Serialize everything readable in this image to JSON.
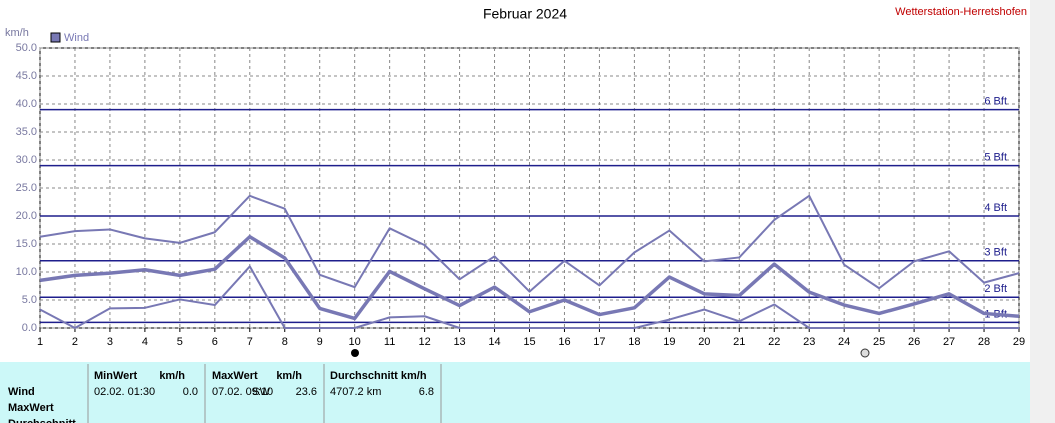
{
  "chart_data": {
    "type": "line",
    "title": "Februar 2024",
    "station": "Wetterstation-Herretshofen",
    "y_axis_label": "km/h",
    "legend": "Wind",
    "legend_color": "#7878b4",
    "grid": true,
    "x": [
      1,
      2,
      3,
      4,
      5,
      6,
      7,
      8,
      9,
      10,
      11,
      12,
      13,
      14,
      15,
      16,
      17,
      18,
      19,
      20,
      21,
      22,
      23,
      24,
      25,
      26,
      27,
      28,
      29
    ],
    "xlim": [
      1,
      29
    ],
    "xticks": [
      1,
      2,
      3,
      4,
      5,
      6,
      7,
      8,
      9,
      10,
      11,
      12,
      13,
      14,
      15,
      16,
      17,
      18,
      19,
      20,
      21,
      22,
      23,
      24,
      25,
      26,
      27,
      28,
      29
    ],
    "ylim": [
      0,
      50
    ],
    "yticks": [
      {
        "value": 0,
        "label": "0.0"
      },
      {
        "value": 5,
        "label": "5.0"
      },
      {
        "value": 10,
        "label": "10.0"
      },
      {
        "value": 15,
        "label": "15.0"
      },
      {
        "value": 20,
        "label": "20.0"
      },
      {
        "value": 25,
        "label": "25.0"
      },
      {
        "value": 30,
        "label": "30.0"
      },
      {
        "value": 35,
        "label": "35.0"
      },
      {
        "value": 40,
        "label": "40.0"
      },
      {
        "value": 45,
        "label": "45.0"
      },
      {
        "value": 50,
        "label": "50.0"
      }
    ],
    "reference_lines": [
      {
        "value": 1,
        "label": "1 Bft"
      },
      {
        "value": 5.5,
        "label": "2 Bft"
      },
      {
        "value": 12,
        "label": "3 Bft"
      },
      {
        "value": 20,
        "label": "4 Bft"
      },
      {
        "value": 29,
        "label": "5 Bft"
      },
      {
        "value": 39,
        "label": "6 Bft"
      }
    ],
    "reference_color": "#1e1e8c",
    "series": [
      {
        "color": "#7878b4",
        "width": 2,
        "values": [
          16.3,
          17.3,
          17.6,
          16,
          15.2,
          17.1,
          23.6,
          21.3,
          9.5,
          7.3,
          17.8,
          14.8,
          8.7,
          12.8,
          6.5,
          12,
          7.6,
          13.5,
          17.4,
          11.9,
          12.6,
          19.3,
          23.6,
          11.3,
          7.1,
          11.9,
          13.7,
          8.1,
          9.8
        ]
      },
      {
        "color": "#7878b4",
        "width": 3.5,
        "values": [
          8.5,
          9.4,
          9.8,
          10.4,
          9.4,
          10.5,
          16.3,
          12.5,
          3.5,
          1.7,
          10.1,
          7,
          4,
          7.3,
          2.9,
          5,
          2.4,
          3.6,
          9.1,
          6.1,
          5.8,
          11.4,
          6.4,
          4.1,
          2.6,
          4.3,
          6.1,
          2.6,
          2.1
        ]
      },
      {
        "color": "#7878b4",
        "width": 2,
        "values": [
          3.3,
          0,
          3.5,
          3.6,
          5.1,
          4.1,
          11,
          0,
          0,
          0,
          1.9,
          2.1,
          0,
          0,
          0,
          0,
          0,
          0,
          1.5,
          3.3,
          1.2,
          4.2,
          0,
          0,
          0,
          0,
          0,
          0,
          0
        ]
      }
    ]
  },
  "table": {
    "headers": [
      "MinWert",
      "km/h",
      "MaxWert",
      "km/h",
      "Durchschnitt km/h"
    ],
    "row_labels": [
      "Wind",
      "MaxWert",
      "Durchschnitt"
    ],
    "cells": [
      "02.02.  01:30",
      "0.0",
      "07.02.  09:10",
      "SW",
      "23.6",
      "4707.2 km",
      "6.8"
    ]
  }
}
